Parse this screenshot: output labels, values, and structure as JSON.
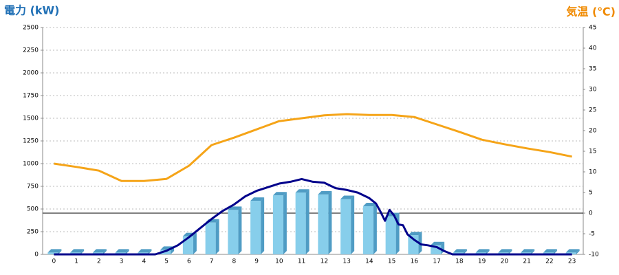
{
  "chart_data": {
    "type": "bar",
    "y_title": "電力 (kW)",
    "y2_title": "気温 (℃)",
    "categories": [
      "0",
      "1",
      "2",
      "3",
      "4",
      "5",
      "6",
      "7",
      "8",
      "9",
      "10",
      "11",
      "12",
      "13",
      "14",
      "15",
      "16",
      "17",
      "18",
      "19",
      "20",
      "21",
      "22",
      "23"
    ],
    "ylim": [
      0,
      2500
    ],
    "yticks": [
      0,
      250,
      500,
      750,
      1000,
      1250,
      1500,
      1750,
      2000,
      2250,
      2500
    ],
    "y2lim": [
      -10,
      45
    ],
    "y2ticks": [
      -10,
      -5,
      0,
      5,
      10,
      15,
      20,
      25,
      30,
      35,
      40,
      45
    ],
    "grid": true,
    "y2_zero_line": true,
    "series": [
      {
        "type": "bar",
        "color": "#87ceeb",
        "side_color": "#4f9cc4",
        "values": [
          20,
          20,
          20,
          20,
          20,
          50,
          200,
          350,
          490,
          590,
          650,
          680,
          660,
          610,
          530,
          420,
          210,
          100,
          20,
          20,
          20,
          20,
          20,
          20
        ]
      },
      {
        "type": "line",
        "color": "#00008b",
        "x": [
          0,
          4.5,
          5,
          5.5,
          6,
          6.5,
          7,
          7.5,
          8,
          8.5,
          9,
          9.5,
          10,
          10.5,
          11,
          11.5,
          12,
          12.5,
          13,
          13.5,
          14,
          14.3,
          14.5,
          14.7,
          14.9,
          15.1,
          15.3,
          15.5,
          15.7,
          16,
          16.3,
          16.6,
          17,
          17.3,
          17.7,
          23
        ],
        "values": [
          0,
          0,
          40,
          100,
          190,
          290,
          390,
          480,
          550,
          640,
          700,
          740,
          780,
          800,
          830,
          800,
          790,
          730,
          710,
          680,
          620,
          560,
          470,
          370,
          490,
          430,
          330,
          320,
          220,
          160,
          110,
          100,
          80,
          40,
          0,
          0
        ]
      },
      {
        "type": "line",
        "axis": "y2",
        "color": "#f5a418",
        "values": [
          12,
          11.2,
          10.3,
          7.8,
          7.8,
          8.3,
          11.5,
          16.5,
          18.3,
          20.3,
          22.3,
          23,
          23.7,
          24,
          23.8,
          23.8,
          23.3,
          21.5,
          19.7,
          17.8,
          16.7,
          15.7,
          14.8,
          13.7
        ]
      }
    ]
  }
}
